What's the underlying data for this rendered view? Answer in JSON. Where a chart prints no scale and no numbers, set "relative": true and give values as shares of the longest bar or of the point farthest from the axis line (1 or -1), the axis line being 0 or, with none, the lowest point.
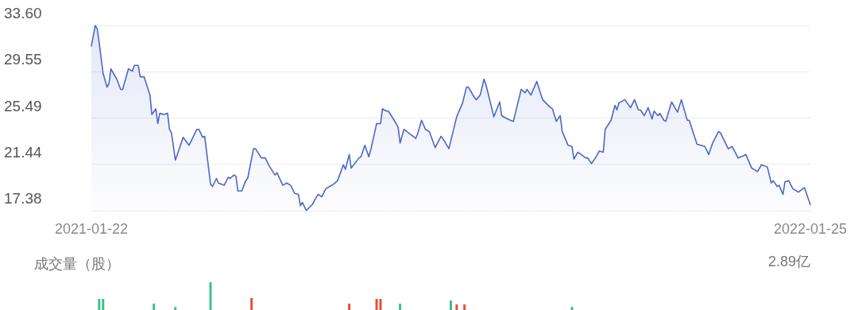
{
  "chart_data": [
    {
      "type": "area",
      "x": [
        "2021-01-22",
        "2021-01-24",
        "2021-01-25",
        "2021-01-26",
        "2021-01-28",
        "2021-01-30",
        "2021-01-31",
        "2021-02-01",
        "2021-02-04",
        "2021-02-06",
        "2021-02-07",
        "2021-02-10",
        "2021-02-12",
        "2021-02-13",
        "2021-02-15",
        "2021-02-16",
        "2021-02-18",
        "2021-02-21",
        "2021-02-22",
        "2021-02-24",
        "2021-02-25",
        "2021-02-26",
        "2021-02-28",
        "2021-03-02",
        "2021-03-03",
        "2021-03-04",
        "2021-03-06",
        "2021-03-10",
        "2021-03-13",
        "2021-03-17",
        "2021-03-18",
        "2021-03-20",
        "2021-03-21",
        "2021-03-24",
        "2021-03-25",
        "2021-03-27",
        "2021-03-28",
        "2021-03-31",
        "2021-04-02",
        "2021-04-03",
        "2021-04-05",
        "2021-04-06",
        "2021-04-07",
        "2021-04-09",
        "2021-04-11",
        "2021-04-12",
        "2021-04-15",
        "2021-04-16",
        "2021-04-19",
        "2021-04-21",
        "2021-04-23",
        "2021-04-26",
        "2021-04-27",
        "2021-04-30",
        "2021-05-02",
        "2021-05-04",
        "2021-05-06",
        "2021-05-08",
        "2021-05-09",
        "2021-05-10",
        "2021-05-12",
        "2021-05-15",
        "2021-05-18",
        "2021-05-20",
        "2021-05-22",
        "2021-05-24",
        "2021-05-26",
        "2021-05-28",
        "2021-05-31",
        "2021-06-01",
        "2021-06-03",
        "2021-06-04",
        "2021-06-08",
        "2021-06-09",
        "2021-06-11",
        "2021-06-13",
        "2021-06-14",
        "2021-06-17",
        "2021-06-19",
        "2021-06-20",
        "2021-06-22",
        "2021-06-23",
        "2021-06-26",
        "2021-06-28",
        "2021-06-29",
        "2021-07-01",
        "2021-07-04",
        "2021-07-07",
        "2021-07-08",
        "2021-07-10",
        "2021-07-12",
        "2021-07-14",
        "2021-07-17",
        "2021-07-20",
        "2021-07-22",
        "2021-07-24",
        "2021-07-28",
        "2021-07-31",
        "2021-08-02",
        "2021-08-03",
        "2021-08-06",
        "2021-08-07",
        "2021-08-09",
        "2021-08-11",
        "2021-08-12",
        "2021-08-15",
        "2021-08-16",
        "2021-08-19",
        "2021-08-20",
        "2021-08-23",
        "2021-08-26",
        "2021-08-30",
        "2021-09-01",
        "2021-09-02",
        "2021-09-04",
        "2021-09-07",
        "2021-09-09",
        "2021-09-10",
        "2021-09-14",
        "2021-09-15",
        "2021-09-17",
        "2021-09-19",
        "2021-09-20",
        "2021-09-23",
        "2021-09-25",
        "2021-09-26",
        "2021-09-28",
        "2021-10-02",
        "2021-10-03",
        "2021-10-05",
        "2021-10-07",
        "2021-10-09",
        "2021-10-11",
        "2021-10-12",
        "2021-10-15",
        "2021-10-17",
        "2021-10-18",
        "2021-10-19",
        "2021-10-22",
        "2021-10-25",
        "2021-10-27",
        "2021-10-29",
        "2021-10-30",
        "2021-11-01",
        "2021-11-03",
        "2021-11-05",
        "2021-11-06",
        "2021-11-08",
        "2021-11-09",
        "2021-11-11",
        "2021-11-12",
        "2021-11-15",
        "2021-11-18",
        "2021-11-20",
        "2021-11-23",
        "2021-11-24",
        "2021-11-28",
        "2021-11-30",
        "2021-12-02",
        "2021-12-04",
        "2021-12-06",
        "2021-12-09",
        "2021-12-10",
        "2021-12-14",
        "2021-12-16",
        "2021-12-19",
        "2021-12-22",
        "2021-12-23",
        "2021-12-26",
        "2021-12-29",
        "2021-12-31",
        "2022-01-03",
        "2022-01-05",
        "2022-01-06",
        "2022-01-08",
        "2022-01-09",
        "2022-01-11",
        "2022-01-12",
        "2022-01-14",
        "2022-01-16",
        "2022-01-19",
        "2022-01-22",
        "2022-01-25"
      ],
      "series": [
        {
          "color": "#4e66c9",
          "values": [
            31.8,
            33.6,
            33.3,
            32.1,
            29.4,
            28.2,
            28.5,
            29.8,
            28.9,
            28.0,
            28.0,
            29.8,
            29.6,
            30.1,
            30.1,
            29.1,
            29.1,
            27.5,
            25.8,
            26.3,
            25.0,
            25.9,
            25.8,
            25.9,
            24.5,
            24.2,
            21.8,
            23.8,
            23.1,
            24.5,
            24.5,
            23.8,
            23.9,
            19.7,
            19.5,
            20.2,
            19.8,
            19.6,
            20.3,
            20.2,
            20.5,
            20.4,
            19.1,
            19.1,
            20.0,
            20.2,
            22.8,
            22.8,
            22.0,
            22.0,
            21.3,
            20.5,
            20.7,
            19.6,
            19.8,
            19.6,
            18.9,
            18.8,
            17.8,
            18.1,
            17.4,
            17.9,
            18.8,
            18.6,
            19.3,
            19.5,
            19.7,
            20.0,
            21.4,
            21.0,
            22.3,
            21.1,
            22.0,
            22.1,
            23.1,
            22.1,
            22.7,
            25.0,
            25.0,
            26.3,
            26.1,
            26.1,
            25.3,
            24.7,
            23.3,
            24.5,
            24.1,
            23.7,
            24.1,
            25.3,
            24.5,
            24.3,
            22.9,
            23.9,
            23.4,
            22.8,
            25.6,
            26.8,
            28.2,
            28.2,
            27.3,
            27.1,
            27.5,
            28.9,
            28.4,
            26.3,
            25.6,
            26.9,
            25.7,
            25.4,
            25.2,
            28.0,
            27.7,
            28.0,
            27.5,
            28.7,
            27.6,
            27.1,
            26.4,
            26.3,
            25.2,
            25.7,
            24.3,
            23.1,
            23.0,
            21.9,
            22.5,
            22.0,
            22.0,
            21.5,
            22.0,
            22.6,
            22.5,
            24.5,
            25.3,
            26.6,
            26.2,
            26.8,
            27.1,
            26.4,
            27.1,
            26.2,
            26.2,
            25.7,
            26.4,
            25.4,
            26.1,
            25.7,
            25.9,
            25.3,
            25.2,
            26.9,
            26.0,
            27.1,
            25.3,
            25.3,
            23.2,
            23.1,
            23.0,
            22.3,
            23.3,
            24.3,
            24.2,
            22.8,
            23.0,
            22.0,
            22.2,
            22.3,
            21.1,
            20.8,
            21.4,
            21.2,
            19.8,
            20.0,
            19.5,
            19.6,
            18.8,
            19.9,
            20.0,
            19.3,
            19.0,
            19.4,
            17.9
          ]
        }
      ],
      "xlim": [
        "2021-01-22",
        "2022-01-25"
      ],
      "xticks": [
        "2021-01-22",
        "2022-01-25"
      ],
      "ylim": [
        17.38,
        33.6
      ],
      "yticks": [
        {
          "value": 17.38,
          "label": "17.38"
        },
        {
          "value": 21.44,
          "label": "21.44"
        },
        {
          "value": 25.49,
          "label": "25.49"
        },
        {
          "value": 29.55,
          "label": "29.55"
        },
        {
          "value": 33.6,
          "label": "33.60"
        }
      ],
      "grid": "y",
      "marker": "none"
    },
    {
      "type": "bar",
      "title": "成交量（股）",
      "annotations": [
        "2.89亿"
      ],
      "relative": true,
      "x": [
        "2021-01-26",
        "2021-01-28",
        "2021-02-23",
        "2021-03-06",
        "2021-03-24",
        "2021-04-14",
        "2021-06-03",
        "2021-06-17",
        "2021-06-19",
        "2021-06-29",
        "2021-07-25",
        "2021-07-28",
        "2021-08-01",
        "2021-09-25"
      ],
      "xlim": [
        "2021-01-22",
        "2022-01-25"
      ],
      "values": [
        0.4,
        0.4,
        0.23,
        0.11,
        1,
        0.43,
        0.23,
        0.4,
        0.4,
        0.23,
        0.34,
        0.2,
        0.2,
        0.11
      ],
      "colors": [
        "#3fbf8f",
        "#3fbf8f",
        "#3fbf8f",
        "#3fbf8f",
        "#3fbf8f",
        "#e0533c",
        "#e0533c",
        "#e0533c",
        "#e0533c",
        "#3fbf8f",
        "#3fbf8f",
        "#e0533c",
        "#e0533c",
        "#3fbf8f"
      ],
      "grid": false
    }
  ]
}
